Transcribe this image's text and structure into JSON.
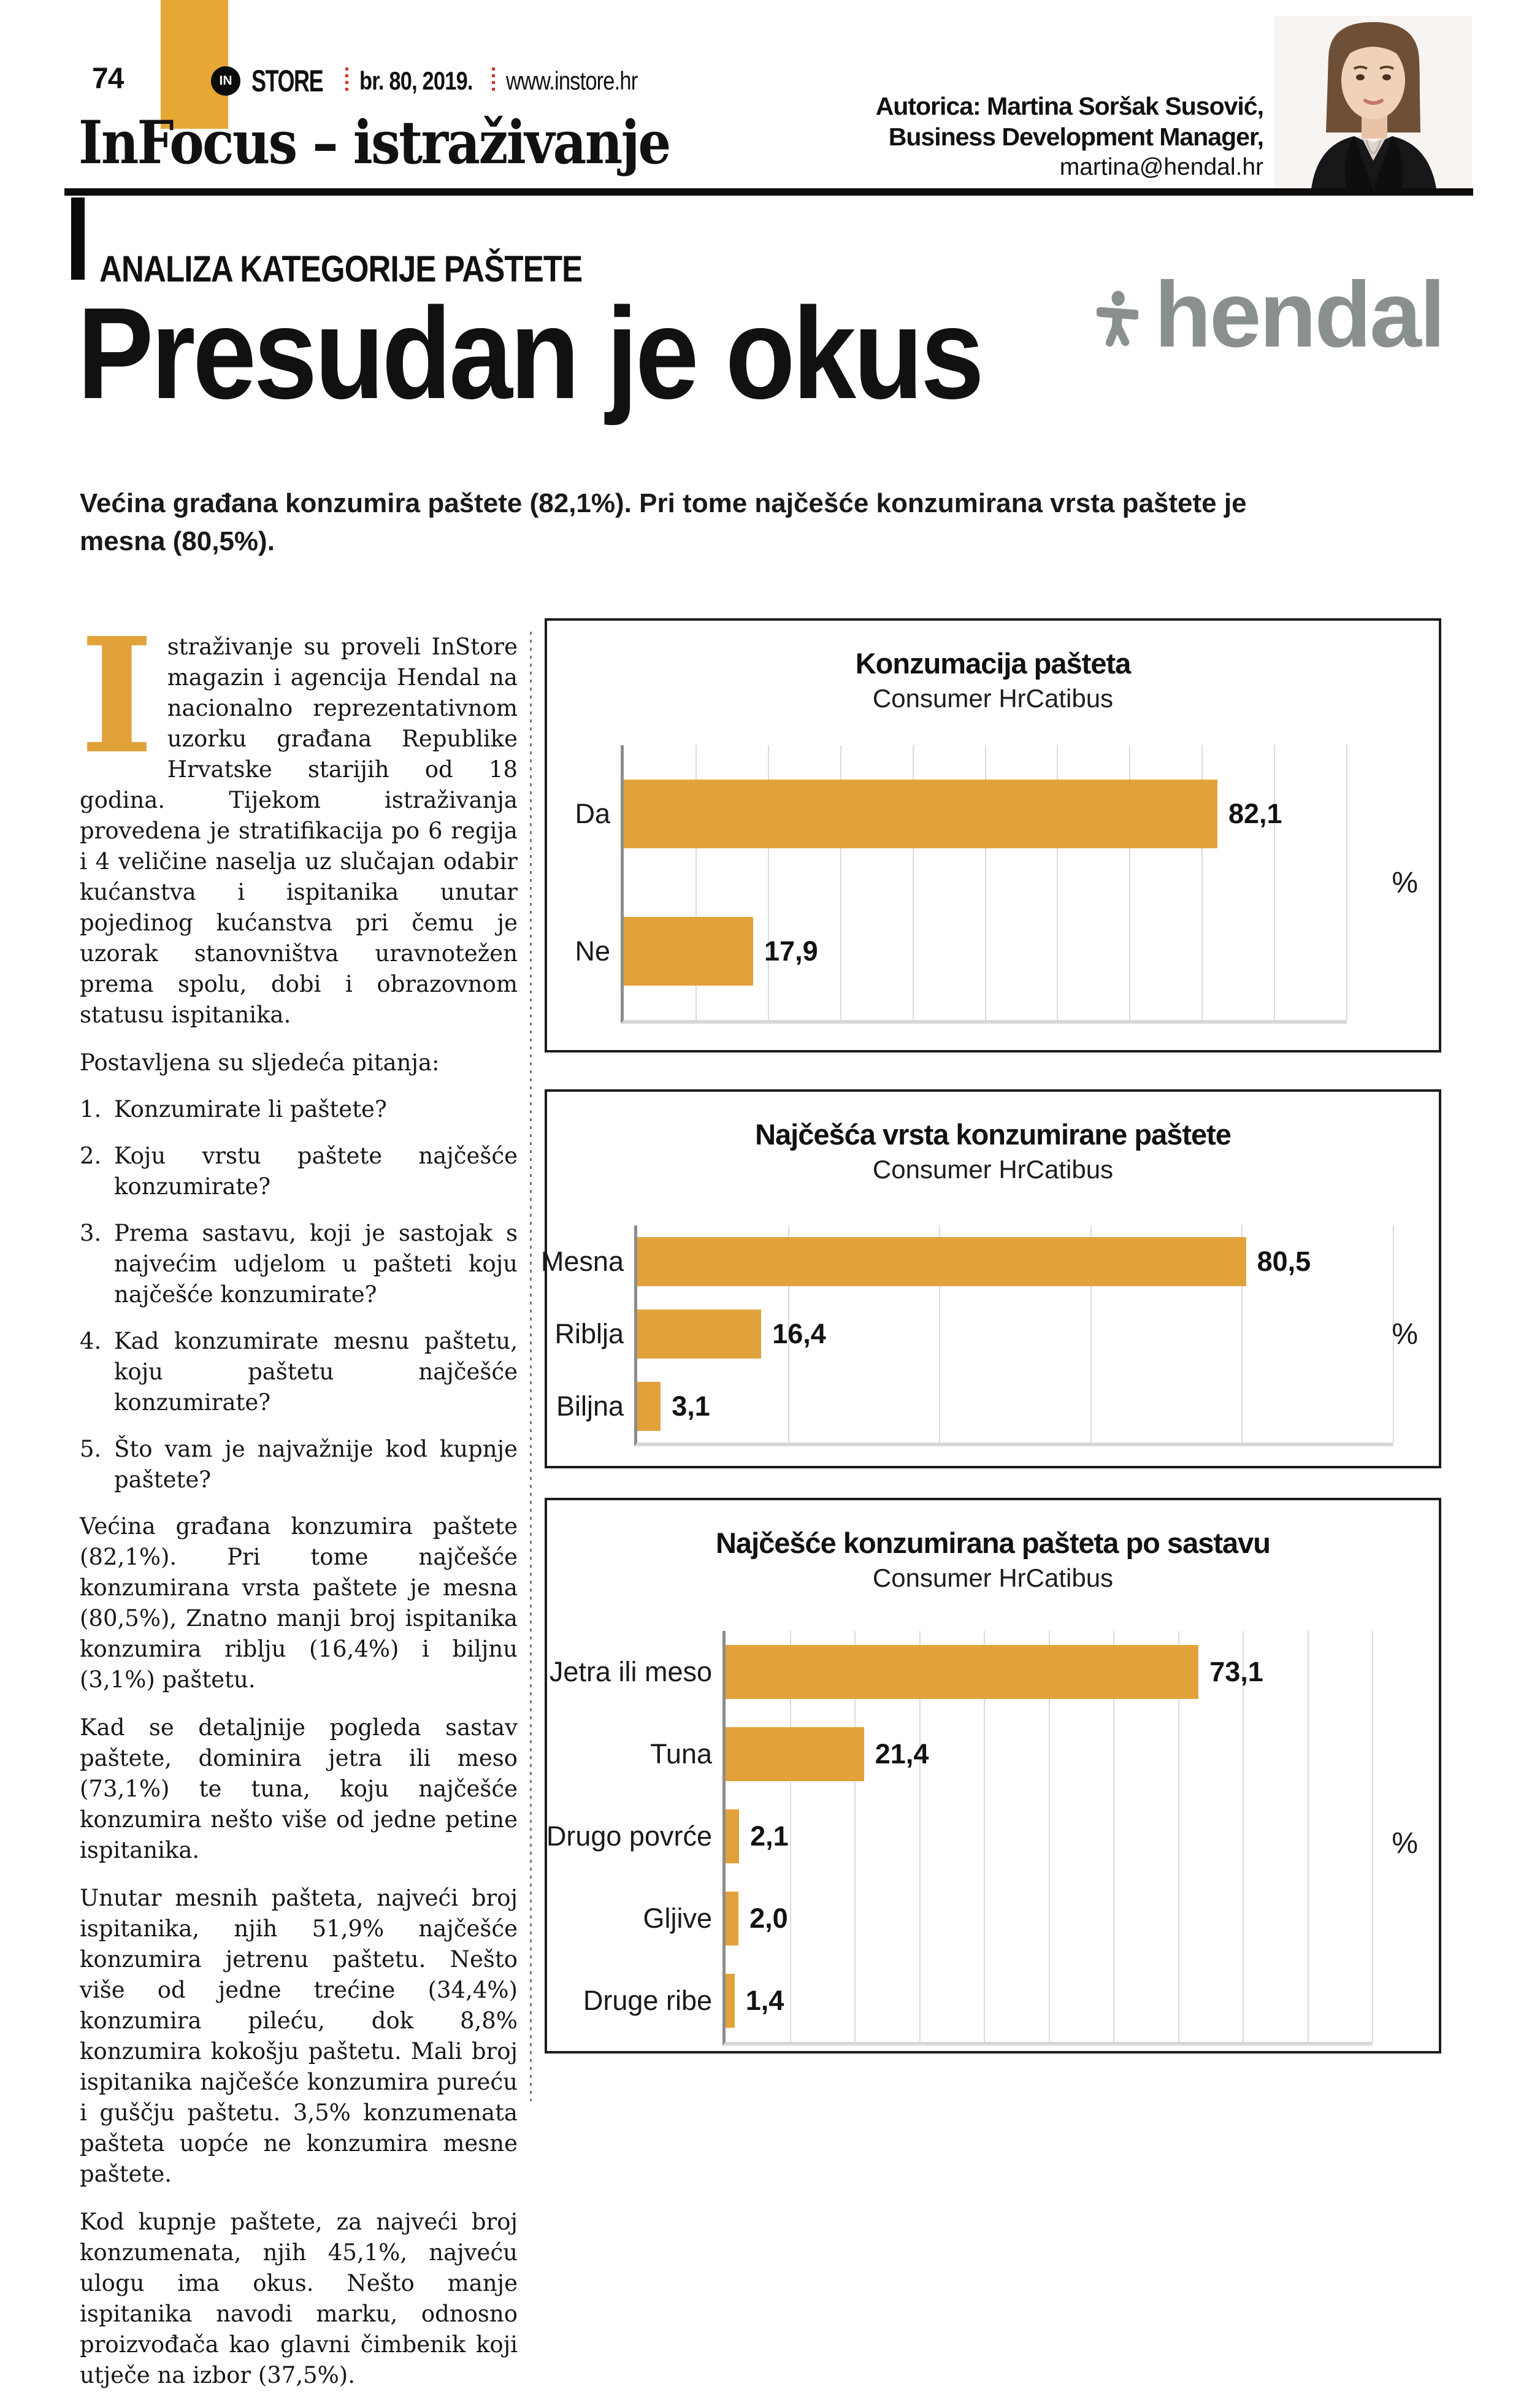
{
  "page": {
    "number": "74",
    "brand_prefix": "IN",
    "brand": "STORE",
    "issue": "br. 80, 2019.",
    "website": "www.instore.hr",
    "section": "InFocus – istraživanje",
    "kicker": "ANALIZA KATEGORIJE PAŠTETE"
  },
  "author": {
    "line1": "Autorica: Martina Soršak Susović,",
    "line2": "Business Development Manager,",
    "email": "martina@hendal.hr"
  },
  "agency_logo": {
    "text": "hendal"
  },
  "article": {
    "title": "Presudan je okus",
    "lead": "Većina građana konzumira paštete (82,1%). Pri tome najčešće konzumirana vrsta paštete je mesna (80,5%).",
    "drop_cap": "I",
    "p1": "straživanje su proveli InStore magazin i agencija Hendal na nacionalno reprezentativnom uzorku građana Republike Hrvatske starijih od 18 godina. Tijekom istraživanja provedena je stratifikacija po 6 regija i 4 veličine naselja uz slučajan odabir kućanstva i ispitanika unutar pojedinog kućanstva pri čemu je uzorak stanovništva uravnotežen prema spolu, dobi i obrazovnom statusu ispitanika.",
    "questions_intro": "Postavljena su sljedeća pitanja:",
    "questions": [
      {
        "num": "1.",
        "text": "Konzumirate li paštete?"
      },
      {
        "num": "2.",
        "text": "Koju vrstu paštete najčešće konzumirate?"
      },
      {
        "num": "3.",
        "text": "Prema sastavu, koji je sastojak s najvećim udjelom u pašteti koju najčešće konzumirate?"
      },
      {
        "num": "4.",
        "text": "Kad konzumirate mesnu paštetu, koju paštetu najčešće konzumirate?"
      },
      {
        "num": "5.",
        "text": "Što vam je najvažnije kod kupnje paštete?"
      }
    ],
    "p3": "Većina građana konzumira paštete (82,1%). Pri tome najčešće konzumirana vrsta paštete je mesna (80,5%), Znatno manji broj ispitanika konzumira riblju (16,4%) i biljnu (3,1%) paštetu.",
    "p4": "Kad se detaljnije pogleda sastav paštete, dominira jetra ili meso (73,1%) te tuna, koju najčešće konzumira nešto više od jedne petine ispitanika.",
    "p5": "Unutar mesnih pašteta, najveći broj ispitanika, njih 51,9% najčešće konzumira jetrenu paštetu. Nešto više od jedne trećine (34,4%) konzumira pileću, dok 8,8% konzumira kokošju paštetu. Mali broj ispitanika najčešće konzumira pureću i guščju paštetu. 3,5% konzumenata pašteta uopće ne konzumira mesne paštete.",
    "p6": "Kod kupnje paštete, za najveći broj konzumenata, njih 45,1%, najveću ulogu ima okus. Nešto manje ispitanika navodi marku, odnosno proizvođača kao glavni čimbenik koji utječe na izbor (37,5%)."
  },
  "colors": {
    "accent_orange": "#E2A23B",
    "logo_orange": "#E7A735",
    "hendal_gray": "#8A918D",
    "dot_red": "#D5372D"
  },
  "chart_data": [
    {
      "type": "bar",
      "orientation": "horizontal",
      "title": "Konzumacija pašteta",
      "subtitle": "Consumer HrCatibus",
      "unit": "%",
      "xlim": [
        0,
        100
      ],
      "grid_step": 10,
      "grid": true,
      "categories": [
        "Da",
        "Ne"
      ],
      "values": [
        82.1,
        17.9
      ],
      "value_labels": [
        "82,1",
        "17,9"
      ]
    },
    {
      "type": "bar",
      "orientation": "horizontal",
      "title": "Najčešća vrsta konzumirane paštete",
      "subtitle": "Consumer HrCatibus",
      "unit": "%",
      "xlim": [
        0,
        100
      ],
      "grid_step": 20,
      "grid": true,
      "categories": [
        "Mesna",
        "Riblja",
        "Biljna"
      ],
      "values": [
        80.5,
        16.4,
        3.1
      ],
      "value_labels": [
        "80,5",
        "16,4",
        "3,1"
      ]
    },
    {
      "type": "bar",
      "orientation": "horizontal",
      "title": "Najčešće konzumirana pašteta po sastavu",
      "subtitle": "Consumer HrCatibus",
      "unit": "%",
      "xlim": [
        0,
        100
      ],
      "grid_step": 10,
      "grid": true,
      "categories": [
        "Jetra ili meso",
        "Tuna",
        "Drugo povrće",
        "Gljive",
        "Druge ribe"
      ],
      "values": [
        73.1,
        21.4,
        2.1,
        2.0,
        1.4
      ],
      "value_labels": [
        "73,1",
        "21,4",
        "2,1",
        "2,0",
        "1,4"
      ]
    }
  ]
}
